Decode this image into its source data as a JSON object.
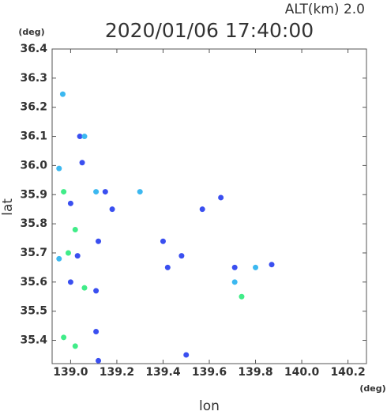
{
  "chart_data": {
    "type": "scatter",
    "title": "2020/01/06 17:40:00",
    "subtitle": "ALT(km)  2.0",
    "y_unit": "(deg)",
    "x_unit": "(deg)",
    "xlabel": "lon",
    "ylabel": "lat",
    "xlim": [
      138.92,
      140.28
    ],
    "ylim": [
      35.32,
      36.4
    ],
    "xticks": [
      {
        "value": 139,
        "label": "139.0"
      },
      139.2,
      139.4,
      139.6,
      139.8,
      {
        "value": 140,
        "label": "140.0"
      },
      140.2
    ],
    "yticks": [
      35.4,
      35.5,
      35.6,
      35.7,
      35.8,
      35.9,
      {
        "value": 36,
        "label": "36.0"
      },
      36.1,
      36.2,
      36.3,
      36.4
    ],
    "grid": false,
    "series": [
      {
        "color": "#3a4ff0",
        "x": [
          139.04,
          139.0,
          139.15,
          139.03,
          139.0,
          139.11,
          139.11,
          139.12,
          139.5,
          139.42,
          139.48,
          139.71,
          139.87,
          139.05,
          139.18,
          139.4,
          139.12,
          139.65,
          139.57
        ],
        "values": [
          36.1,
          35.87,
          35.91,
          35.69,
          35.6,
          35.57,
          35.43,
          35.33,
          35.35,
          35.65,
          35.69,
          35.65,
          35.66,
          36.01,
          35.85,
          35.74,
          35.74,
          35.89,
          35.85
        ]
      },
      {
        "color": "#3cb8f0",
        "x": [
          138.966,
          139.06,
          138.95,
          139.11,
          139.3,
          138.95,
          139.8,
          139.71
        ],
        "values": [
          36.245,
          36.1,
          35.99,
          35.91,
          35.91,
          35.68,
          35.65,
          35.6
        ]
      },
      {
        "color": "#40ec88",
        "x": [
          138.97,
          139.02,
          138.99,
          139.06,
          139.02,
          138.97,
          139.74
        ],
        "values": [
          35.91,
          35.78,
          35.7,
          35.58,
          35.38,
          35.41,
          35.55
        ]
      }
    ]
  }
}
